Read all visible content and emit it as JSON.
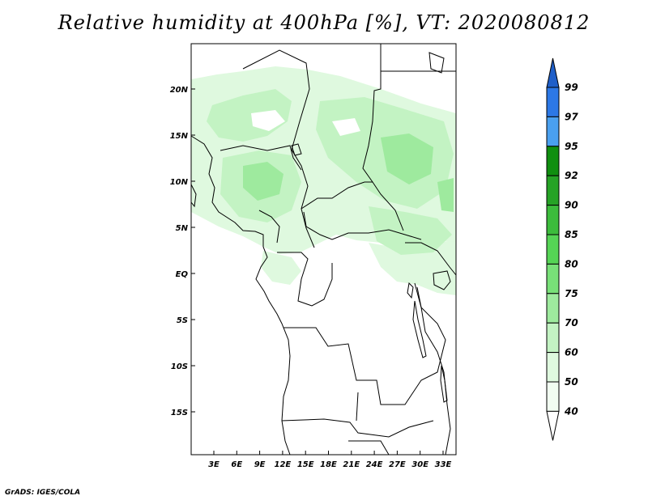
{
  "title": "Relative humidity at 400hPa [%], VT: 2020080812",
  "credit": "GrADS: IGES/COLA",
  "map": {
    "lat_labels": [
      "20N",
      "15N",
      "10N",
      "5N",
      "EQ",
      "5S",
      "10S",
      "15S"
    ],
    "lon_labels": [
      "3E",
      "6E",
      "9E",
      "12E",
      "15E",
      "18E",
      "21E",
      "24E",
      "27E",
      "30E",
      "33E"
    ]
  },
  "colorbar": {
    "labels": [
      "99",
      "97",
      "95",
      "92",
      "90",
      "85",
      "80",
      "75",
      "70",
      "60",
      "50",
      "40"
    ],
    "colors": [
      "#1f5fc9",
      "#2c78e6",
      "#4aa0ef",
      "#108f10",
      "#26a326",
      "#3cbc3c",
      "#55d455",
      "#78e078",
      "#9eea9e",
      "#c3f3c3",
      "#dff9df",
      "#f2fdf2"
    ]
  }
}
